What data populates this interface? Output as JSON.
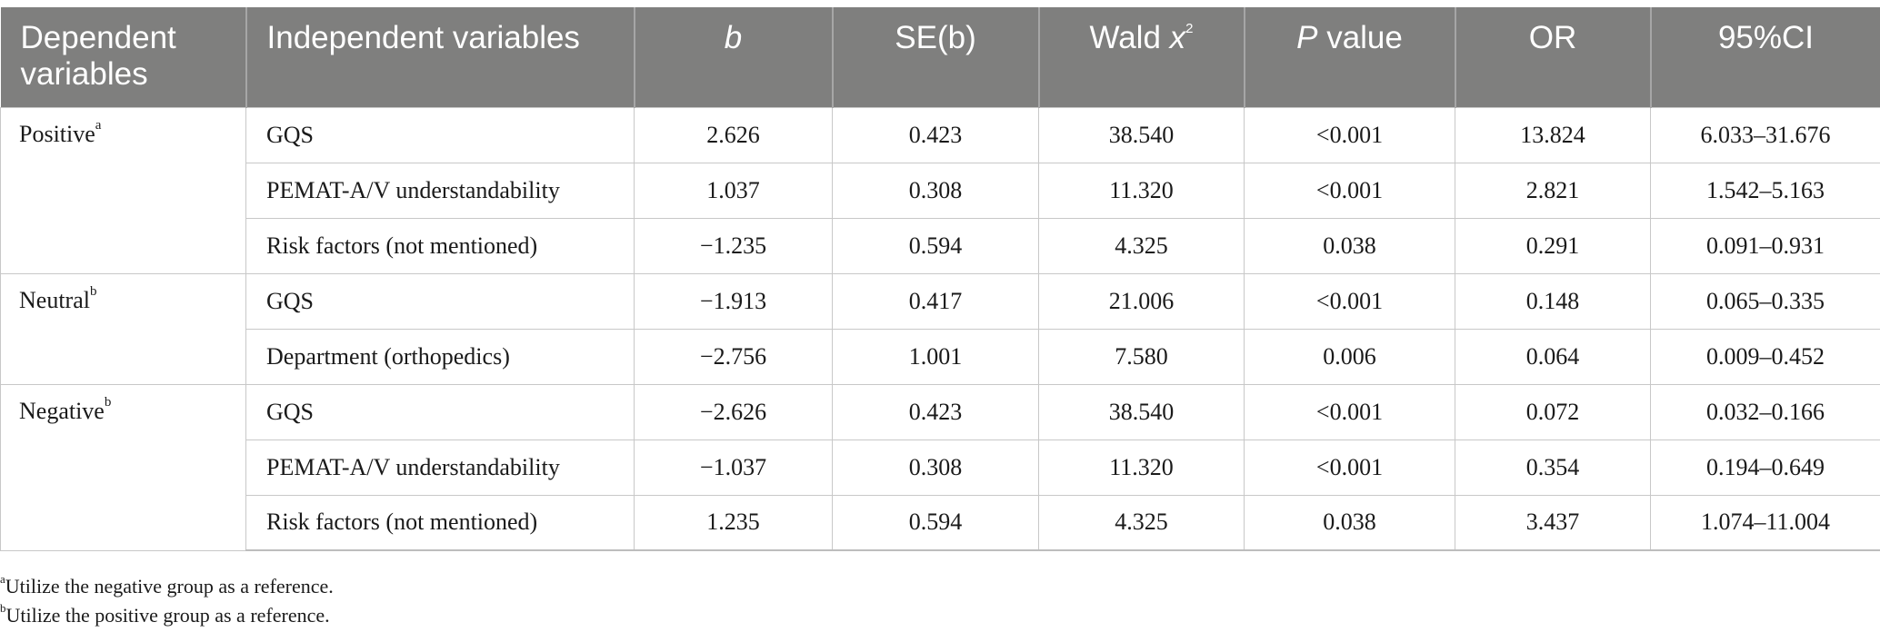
{
  "table": {
    "headers": {
      "dependent": "Dependent variables",
      "independent": "Independent variables",
      "b": "b",
      "se": "SE(b)",
      "wald_prefix": "Wald ",
      "wald_var": "x",
      "wald_sup": "2",
      "p_ital": "P",
      "p_rest": " value",
      "or": "OR",
      "ci": "95%CI"
    },
    "groups": [
      {
        "name": "Positive",
        "sup": "a",
        "rows": [
          {
            "variable": "GQS",
            "b": "2.626",
            "se": "0.423",
            "wald": "38.540",
            "p": "<0.001",
            "or": "13.824",
            "ci": "6.033–31.676"
          },
          {
            "variable": "PEMAT-A/V understandability",
            "b": "1.037",
            "se": "0.308",
            "wald": "11.320",
            "p": "<0.001",
            "or": "2.821",
            "ci": "1.542–5.163"
          },
          {
            "variable": "Risk factors (not mentioned)",
            "b": "−1.235",
            "se": "0.594",
            "wald": "4.325",
            "p": "0.038",
            "or": "0.291",
            "ci": "0.091–0.931"
          }
        ]
      },
      {
        "name": "Neutral",
        "sup": "b",
        "rows": [
          {
            "variable": "GQS",
            "b": "−1.913",
            "se": "0.417",
            "wald": "21.006",
            "p": "<0.001",
            "or": "0.148",
            "ci": "0.065–0.335"
          },
          {
            "variable": "Department (orthopedics)",
            "b": "−2.756",
            "se": "1.001",
            "wald": "7.580",
            "p": "0.006",
            "or": "0.064",
            "ci": "0.009–0.452"
          }
        ]
      },
      {
        "name": "Negative",
        "sup": "b",
        "rows": [
          {
            "variable": "GQS",
            "b": "−2.626",
            "se": "0.423",
            "wald": "38.540",
            "p": "<0.001",
            "or": "0.072",
            "ci": "0.032–0.166"
          },
          {
            "variable": "PEMAT-A/V understandability",
            "b": "−1.037",
            "se": "0.308",
            "wald": "11.320",
            "p": "<0.001",
            "or": "0.354",
            "ci": "0.194–0.649"
          },
          {
            "variable": "Risk factors (not mentioned)",
            "b": "1.235",
            "se": "0.594",
            "wald": "4.325",
            "p": "0.038",
            "or": "3.437",
            "ci": "1.074–11.004"
          }
        ]
      }
    ]
  },
  "footnotes": [
    {
      "sup": "a",
      "text": "Utilize the negative group as a reference."
    },
    {
      "sup": "b",
      "text": "Utilize the positive group as a reference."
    }
  ],
  "colors": {
    "header_bg": "#7f7f7e",
    "header_text": "#ffffff",
    "grid": "#c8c8c8"
  }
}
